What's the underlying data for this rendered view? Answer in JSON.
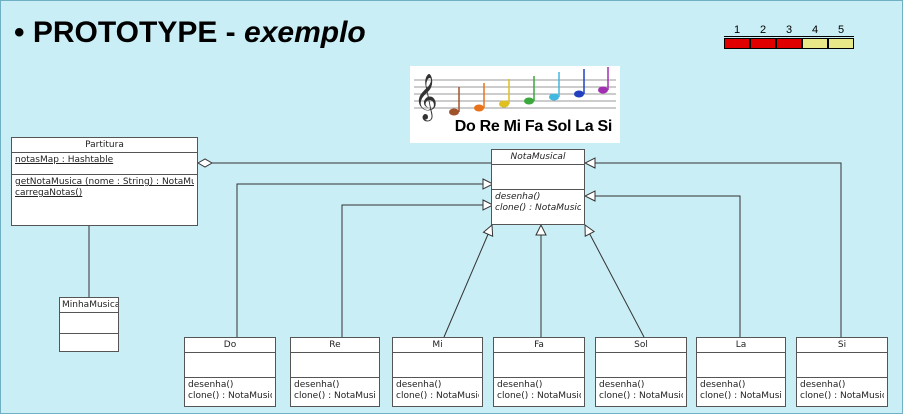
{
  "slide": {
    "title_main": "PROTOTYPE - ",
    "title_italic": "exemplo",
    "bullet": "•"
  },
  "progress": {
    "steps": [
      "1",
      "2",
      "3",
      "4",
      "5"
    ],
    "completed": 3,
    "done_color": "#e00000",
    "todo_color": "#e8e888"
  },
  "notes_image": {
    "solfege_label": "Do Re Mi Fa Sol La Si"
  },
  "diagram": {
    "partitura": {
      "name": "Partitura",
      "attributes": [
        "notasMap : Hashtable"
      ],
      "operations": [
        "getNotaMusica (nome : String) : NotaMusical",
        "carregaNotas()"
      ]
    },
    "nota_musical": {
      "name": "NotaMusical",
      "operations": [
        "desenha()",
        "clone() : NotaMusical"
      ]
    },
    "minha_musica": {
      "name": "MinhaMusica"
    },
    "notes": [
      {
        "name": "Do",
        "op1": "desenha()",
        "op2": "clone() : NotaMusical"
      },
      {
        "name": "Re",
        "op1": "desenha()",
        "op2": "clone() : NotaMusical"
      },
      {
        "name": "Mi",
        "op1": "desenha()",
        "op2": "clone() : NotaMusical"
      },
      {
        "name": "Fa",
        "op1": "desenha()",
        "op2": "clone() : NotaMusical"
      },
      {
        "name": "Sol",
        "op1": "desenha()",
        "op2": "clone() : NotaMusical"
      },
      {
        "name": "La",
        "op1": "desenha()",
        "op2": "clone() : NotaMusical"
      },
      {
        "name": "Si",
        "op1": "desenha()",
        "op2": "clone() : NotaMusical"
      }
    ]
  }
}
